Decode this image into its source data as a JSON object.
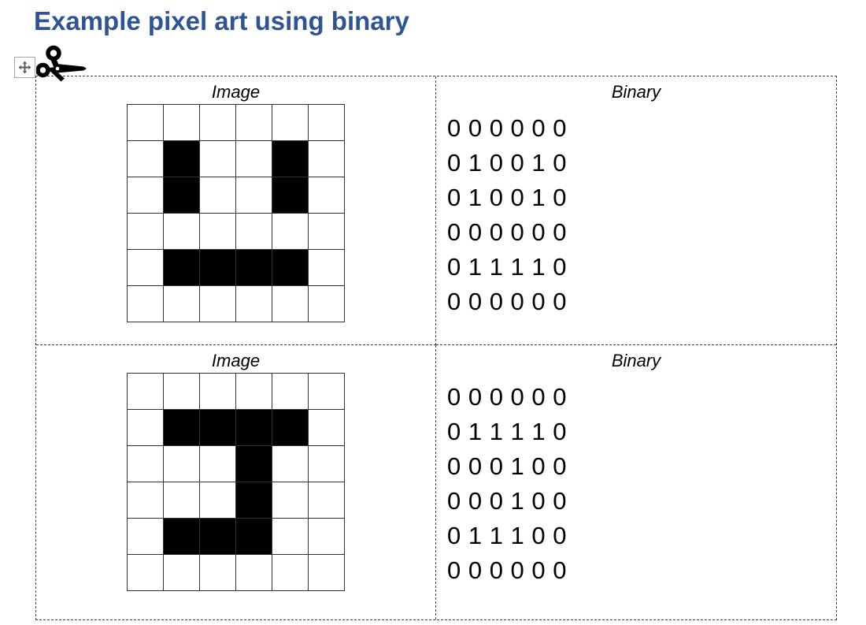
{
  "title": {
    "text": "Example pixel art using binary"
  },
  "icons": {
    "move_handle": "four-direction-move-arrows",
    "scissors": "scissors-cut-along-dashed-line"
  },
  "table": {
    "rows": [
      {
        "image_header": "Image",
        "binary_header": "Binary",
        "pixels": [
          "000000",
          "010010",
          "010010",
          "000000",
          "011110",
          "000000"
        ],
        "binary_lines": [
          "0 0 0 0 0 0",
          "0 1 0 0 1 0",
          "0 1 0 0 1 0",
          "0 0 0 0 0 0",
          "0 1 1 1 1 0",
          "0 0 0 0 0 0"
        ]
      },
      {
        "image_header": "Image",
        "binary_header": "Binary",
        "pixels": [
          "000000",
          "011110",
          "000100",
          "000100",
          "011100",
          "000000"
        ],
        "binary_lines": [
          "0 0 0 0 0 0",
          "0 1 1 1 1 0",
          "0 0 0 1 0 0",
          "0 0 0 1 0 0",
          "0 1 1 1 0 0",
          "0 0 0 0 0 0"
        ]
      }
    ]
  },
  "colors": {
    "heading": "#2F5496",
    "dash": "#3F3F3F",
    "gridline": "#333333",
    "pixel_on": "#000000",
    "pixel_off": "#FFFFFF",
    "icon_gray": "#595959",
    "handle_border": "#A6A6A6",
    "text": "#000000"
  }
}
